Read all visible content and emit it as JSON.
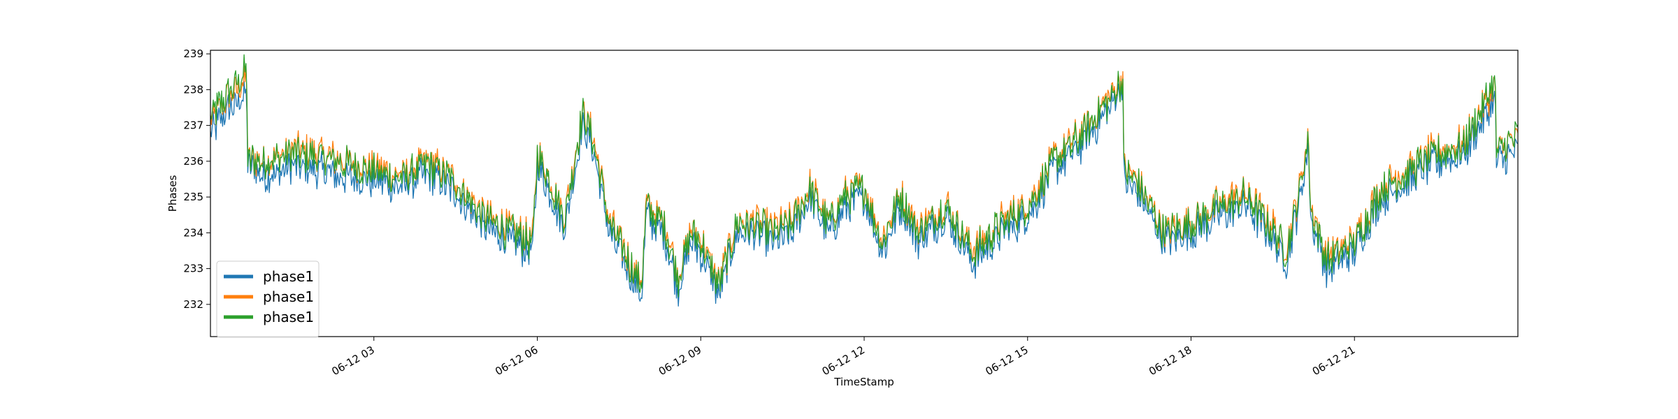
{
  "chart_data": {
    "type": "line",
    "title": "",
    "xlabel": "TimeStamp",
    "ylabel": "Phases",
    "ylim": [
      231.1,
      239.1
    ],
    "xlim": [
      "2020-06-12 00:00",
      "2020-06-13 00:00"
    ],
    "x_ticks": [
      {
        "x": "06-12 03",
        "label": "06-12 03"
      },
      {
        "x": "06-12 06",
        "label": "06-12 06"
      },
      {
        "x": "06-12 09",
        "label": "06-12 09"
      },
      {
        "x": "06-12 12",
        "label": "06-12 12"
      },
      {
        "x": "06-12 15",
        "label": "06-12 15"
      },
      {
        "x": "06-12 18",
        "label": "06-12 18"
      },
      {
        "x": "06-12 21",
        "label": "06-12 21"
      }
    ],
    "y_ticks": [
      232,
      233,
      234,
      235,
      236,
      237,
      238,
      239
    ],
    "grid": false,
    "legend_position": "lower-left",
    "x": [
      "00:00",
      "00:20",
      "00:40",
      "00:41",
      "01:00",
      "01:30",
      "02:00",
      "02:30",
      "03:00",
      "03:30",
      "04:00",
      "04:30",
      "05:00",
      "05:30",
      "05:55",
      "06:00",
      "06:30",
      "06:50",
      "07:00",
      "07:20",
      "07:40",
      "07:55",
      "08:00",
      "08:20",
      "08:35",
      "08:50",
      "09:00",
      "09:20",
      "09:40",
      "10:00",
      "10:20",
      "10:40",
      "11:00",
      "11:20",
      "11:40",
      "12:00",
      "12:20",
      "12:40",
      "13:00",
      "13:30",
      "14:00",
      "14:30",
      "15:00",
      "15:30",
      "16:00",
      "16:30",
      "16:45",
      "16:46",
      "17:00",
      "17:30",
      "18:00",
      "18:30",
      "19:00",
      "19:30",
      "19:45",
      "20:00",
      "20:10",
      "20:11",
      "20:30",
      "21:00",
      "21:30",
      "22:00",
      "22:30",
      "23:00",
      "23:35",
      "23:36",
      "24:00"
    ],
    "series": [
      {
        "name": "phase1",
        "color": "#1f77b4",
        "values": [
          236.8,
          237.5,
          237.9,
          235.9,
          235.6,
          235.9,
          235.8,
          235.6,
          235.5,
          235.3,
          235.7,
          235.2,
          234.2,
          233.8,
          233.5,
          236.0,
          234.2,
          237.0,
          236.5,
          234.0,
          233.0,
          232.3,
          234.5,
          234.0,
          232.5,
          233.8,
          233.5,
          232.3,
          234.0,
          234.0,
          233.8,
          234.0,
          235.0,
          234.0,
          234.8,
          235.0,
          233.5,
          234.8,
          233.8,
          234.5,
          233.2,
          234.0,
          234.5,
          235.8,
          236.5,
          237.5,
          238.2,
          235.5,
          235.2,
          233.8,
          234.0,
          234.5,
          234.8,
          233.9,
          233.2,
          235.0,
          236.5,
          234.5,
          233.0,
          233.5,
          235.0,
          235.5,
          236.0,
          236.2,
          237.8,
          236.0,
          236.3
        ]
      },
      {
        "name": "phase1",
        "color": "#ff7f0e",
        "values": [
          237.1,
          237.8,
          238.3,
          236.1,
          236.0,
          236.3,
          236.2,
          236.0,
          235.8,
          235.6,
          236.0,
          235.5,
          234.5,
          234.1,
          233.8,
          236.3,
          234.5,
          237.4,
          236.8,
          234.3,
          233.3,
          232.6,
          234.8,
          234.3,
          232.8,
          234.1,
          233.8,
          232.6,
          234.3,
          234.3,
          234.1,
          234.3,
          235.3,
          234.3,
          235.1,
          235.3,
          233.8,
          235.1,
          234.1,
          234.8,
          233.5,
          234.3,
          234.8,
          236.1,
          236.8,
          237.8,
          238.4,
          235.8,
          235.5,
          234.1,
          234.3,
          234.8,
          235.1,
          234.2,
          233.5,
          235.3,
          236.8,
          234.8,
          233.3,
          233.8,
          235.3,
          235.8,
          236.3,
          236.5,
          238.1,
          236.3,
          236.6
        ]
      },
      {
        "name": "phase1",
        "color": "#2ca02c",
        "values": [
          237.2,
          237.9,
          238.5,
          236.0,
          236.0,
          236.2,
          236.1,
          235.9,
          235.7,
          235.5,
          235.9,
          235.4,
          234.4,
          234.0,
          233.7,
          236.2,
          234.4,
          237.3,
          236.7,
          234.2,
          233.2,
          232.5,
          234.7,
          234.2,
          232.7,
          234.0,
          233.7,
          232.5,
          234.2,
          234.2,
          234.0,
          234.2,
          235.2,
          234.2,
          235.0,
          235.2,
          233.7,
          235.0,
          234.0,
          234.7,
          233.4,
          234.2,
          234.7,
          236.0,
          236.7,
          237.7,
          238.3,
          235.7,
          235.4,
          234.0,
          234.2,
          234.7,
          235.0,
          234.1,
          233.4,
          235.2,
          236.7,
          234.7,
          233.2,
          233.7,
          235.2,
          235.7,
          236.2,
          236.4,
          238.3,
          236.2,
          236.7
        ]
      }
    ]
  }
}
